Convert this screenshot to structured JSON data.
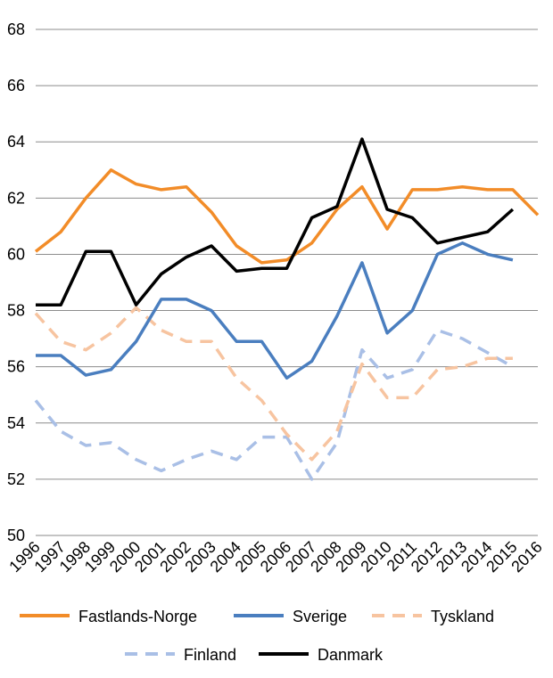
{
  "chart_data": {
    "type": "line",
    "title": "",
    "xlabel": "",
    "ylabel": "",
    "ylim": [
      50,
      68
    ],
    "y_ticks": [
      "50",
      "52",
      "54",
      "56",
      "58",
      "60",
      "62",
      "64",
      "66",
      "68"
    ],
    "categories": [
      "1996",
      "1997",
      "1998",
      "1999",
      "2000",
      "2001",
      "2002",
      "2003",
      "2004",
      "2005",
      "2006",
      "2007",
      "2008",
      "2009",
      "2010",
      "2011",
      "2012",
      "2013",
      "2014",
      "2015",
      "2016"
    ],
    "grid": "horizontal",
    "legend_position": "bottom",
    "series": [
      {
        "name": "Fastlands-Norge",
        "color": "#f28c28",
        "dash": "solid",
        "values": [
          60.1,
          60.8,
          62.0,
          63.0,
          62.5,
          62.3,
          62.4,
          61.5,
          60.3,
          59.7,
          59.8,
          60.4,
          61.6,
          62.4,
          60.9,
          62.3,
          62.3,
          62.4,
          62.3,
          62.3,
          61.4
        ]
      },
      {
        "name": "Sverige",
        "color": "#4a7ebf",
        "dash": "solid",
        "values": [
          56.4,
          56.4,
          55.7,
          55.9,
          56.9,
          58.4,
          58.4,
          58.0,
          56.9,
          56.9,
          55.6,
          56.2,
          57.8,
          59.7,
          57.2,
          58.0,
          60.0,
          60.4,
          60.0,
          59.8,
          null
        ]
      },
      {
        "name": "Tyskland",
        "color": "#f7c4a0",
        "dash": "dashed",
        "values": [
          57.9,
          56.9,
          56.6,
          57.2,
          58.1,
          57.3,
          56.9,
          56.9,
          55.6,
          54.8,
          53.6,
          52.7,
          53.7,
          56.1,
          54.9,
          54.9,
          55.9,
          56.0,
          56.3,
          56.3,
          null
        ]
      },
      {
        "name": "Finland",
        "color": "#a9bfe6",
        "dash": "dashed",
        "values": [
          54.8,
          53.7,
          53.2,
          53.3,
          52.7,
          52.3,
          52.7,
          53.0,
          52.7,
          53.5,
          53.5,
          52.0,
          53.3,
          56.6,
          55.6,
          55.9,
          57.3,
          57.0,
          56.5,
          56.0,
          null
        ]
      },
      {
        "name": "Danmark",
        "color": "#000000",
        "dash": "solid",
        "values": [
          58.2,
          58.2,
          60.1,
          60.1,
          58.2,
          59.3,
          59.9,
          60.3,
          59.4,
          59.5,
          59.5,
          61.3,
          61.7,
          64.1,
          61.6,
          61.3,
          60.4,
          60.6,
          60.8,
          61.6,
          null
        ]
      }
    ]
  }
}
